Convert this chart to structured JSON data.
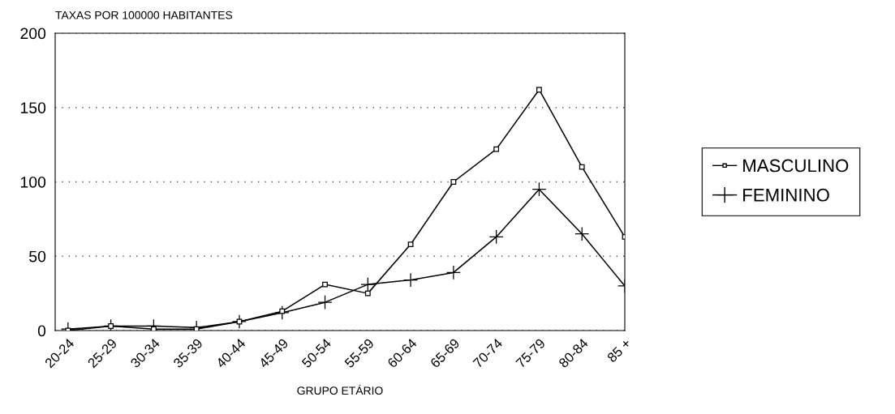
{
  "chart_data": {
    "type": "line",
    "ylabel": "TAXAS POR 100000 HABITANTES",
    "xlabel": "GRUPO ETÁRIO",
    "categories": [
      "20-24",
      "25-29",
      "30-34",
      "35-39",
      "40-44",
      "45-49",
      "50-54",
      "55-59",
      "60-64",
      "65-69",
      "70-74",
      "75-79",
      "80-84",
      "85 +"
    ],
    "series": [
      {
        "name": "MASCULINO",
        "color": "#000000",
        "marker": "square",
        "values": [
          0,
          3,
          1,
          1,
          6,
          13,
          31,
          25,
          58,
          100,
          122,
          162,
          110,
          63
        ]
      },
      {
        "name": "FEMININO",
        "color": "#000000",
        "marker": "cross",
        "values": [
          1,
          3,
          3,
          2,
          6,
          12,
          19,
          31,
          34,
          39,
          63,
          95,
          65,
          30
        ]
      }
    ],
    "ylim": [
      0,
      200
    ],
    "yticks": [
      0,
      50,
      100,
      150,
      200
    ],
    "grid": "y",
    "legend": "right",
    "line_style": "solid"
  }
}
